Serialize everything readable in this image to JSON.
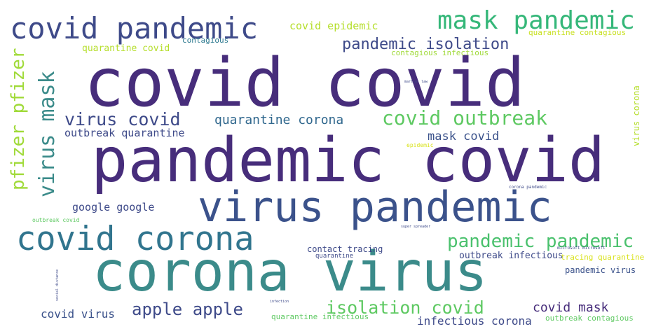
{
  "words": [
    {
      "id": "covid-covid",
      "text": "covid covid",
      "color": "#472d7b"
    },
    {
      "id": "pandemic-covid",
      "text": "pandemic covid",
      "color": "#472d7b"
    },
    {
      "id": "virus-pandemic",
      "text": "virus pandemic",
      "color": "#3b528b"
    },
    {
      "id": "corona-virus",
      "text": "corona virus",
      "color": "#3b8b8a"
    },
    {
      "id": "covid-pandemic",
      "text": "covid pandemic",
      "color": "#3e4a89"
    },
    {
      "id": "covid-corona",
      "text": "covid corona",
      "color": "#31758e"
    },
    {
      "id": "mask-pandemic",
      "text": "mask pandemic",
      "color": "#35b779"
    },
    {
      "id": "pandemic-isolation",
      "text": "pandemic isolation",
      "color": "#3e4a89"
    },
    {
      "id": "virus-covid",
      "text": "virus covid",
      "color": "#3e4a89"
    },
    {
      "id": "covid-outbreak",
      "text": "covid outbreak",
      "color": "#5ec962"
    },
    {
      "id": "quarantine-corona",
      "text": "quarantine corona",
      "color": "#31688e"
    },
    {
      "id": "outbreak-quarantine",
      "text": "outbreak quarantine",
      "color": "#3e4a89"
    },
    {
      "id": "mask-covid",
      "text": "mask covid",
      "color": "#3b528b"
    },
    {
      "id": "covid-epidemic",
      "text": "covid epidemic",
      "color": "#b5de2b"
    },
    {
      "id": "quarantine-contagious",
      "text": "quarantine contagious",
      "color": "#c8e020"
    },
    {
      "id": "quarantine-covid",
      "text": "quarantine covid",
      "color": "#b5de2b"
    },
    {
      "id": "contagious",
      "text": "contagious",
      "color": "#2a788e"
    },
    {
      "id": "contagious-infectious",
      "text": "contagious infectious",
      "color": "#a0da39"
    },
    {
      "id": "martial-law",
      "text": "martial law",
      "color": "#3e4a89"
    },
    {
      "id": "epidemic",
      "text": "epidemic",
      "color": "#d8e219"
    },
    {
      "id": "google-google",
      "text": "google google",
      "color": "#3e4a89"
    },
    {
      "id": "outbreak-covid",
      "text": "outbreak covid",
      "color": "#5ec962"
    },
    {
      "id": "pandemic-pandemic",
      "text": "pandemic pandemic",
      "color": "#4ac16d"
    },
    {
      "id": "contact-tracing",
      "text": "contact tracing",
      "color": "#3e4a89"
    },
    {
      "id": "quarantine",
      "text": "quarantine",
      "color": "#3e4a89"
    },
    {
      "id": "outbreak-infectious",
      "text": "outbreak infectious",
      "color": "#3e4a89"
    },
    {
      "id": "tracing-quarantine",
      "text": "tracing quarantine",
      "color": "#d8e219"
    },
    {
      "id": "microsoft-microsoft",
      "text": "microsoft microsoft",
      "color": "#3e4a89"
    },
    {
      "id": "pandemic-virus",
      "text": "pandemic virus",
      "color": "#3b528b"
    },
    {
      "id": "apple-apple",
      "text": "apple apple",
      "color": "#3e4a89"
    },
    {
      "id": "isolation-covid",
      "text": "isolation covid",
      "color": "#5ec962"
    },
    {
      "id": "covid-mask",
      "text": "covid mask",
      "color": "#472d7b"
    },
    {
      "id": "covid-virus",
      "text": "covid virus",
      "color": "#3b528b"
    },
    {
      "id": "quarantine-infectious",
      "text": "quarantine infectious",
      "color": "#5ec962"
    },
    {
      "id": "infectious-corona",
      "text": "infectious corona",
      "color": "#3e4a89"
    },
    {
      "id": "outbreak-contagious",
      "text": "outbreak contagious",
      "color": "#5ec962"
    },
    {
      "id": "corona-pandemic",
      "text": "corona pandemic",
      "color": "#3e4a89"
    },
    {
      "id": "super-spreader",
      "text": "super spreader",
      "color": "#3e4a89"
    },
    {
      "id": "infection",
      "text": "infection",
      "color": "#3e4a89"
    },
    {
      "id": "pfizer-pfizer",
      "text": "pfizer pfizer",
      "color": "#a0da39"
    },
    {
      "id": "virus-mask",
      "text": "virus mask",
      "color": "#3b8b8a"
    },
    {
      "id": "virus-corona",
      "text": "virus corona",
      "color": "#b5de2b"
    },
    {
      "id": "social-distance",
      "text": "social distance",
      "color": "#3e4a89"
    }
  ]
}
